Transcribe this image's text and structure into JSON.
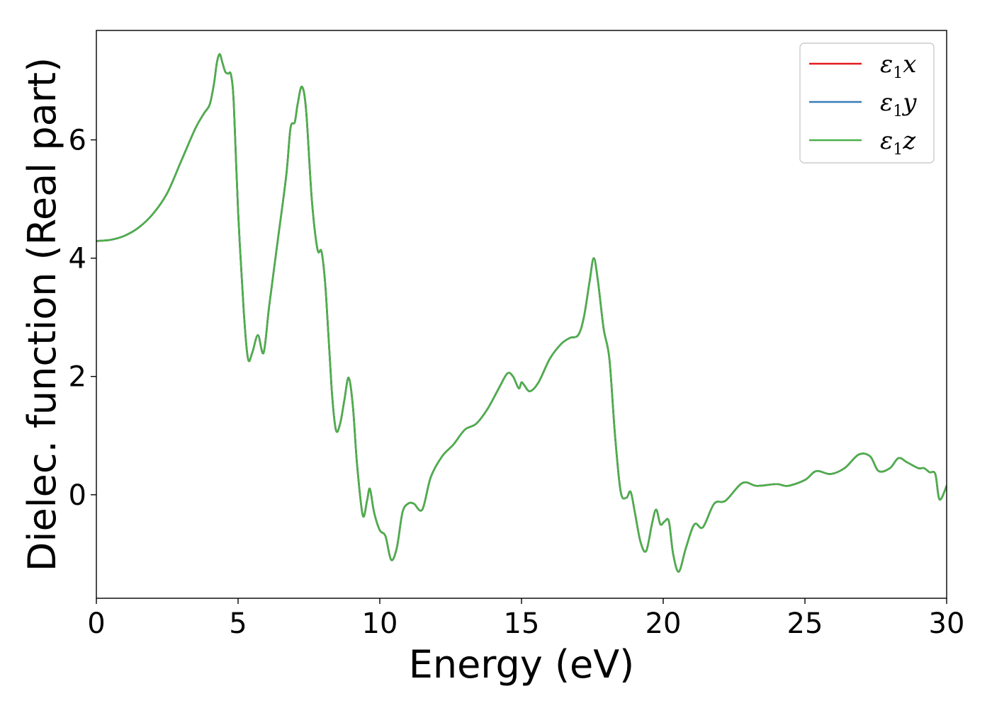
{
  "chart_data": {
    "type": "line",
    "xlabel": "Energy (eV)",
    "ylabel": "Dielec. function (Real part)",
    "xlim": [
      0,
      30
    ],
    "ylim": [
      -1.75,
      7.85
    ],
    "xticks": [
      0,
      5,
      10,
      15,
      20,
      25,
      30
    ],
    "yticks": [
      0,
      2,
      4,
      6
    ],
    "grid": false,
    "legend_position": "top-right",
    "legend": [
      {
        "base": "ε",
        "sub": "1",
        "var": "x",
        "color": "#e41a1c"
      },
      {
        "base": "ε",
        "sub": "1",
        "var": "y",
        "color": "#377eb8"
      },
      {
        "base": "ε",
        "sub": "1",
        "var": "z",
        "color": "#4daf4a"
      }
    ],
    "x": [
      0,
      0.5,
      1.0,
      1.5,
      2.0,
      2.5,
      3.0,
      3.5,
      3.8,
      4.0,
      4.15,
      4.25,
      4.35,
      4.45,
      4.55,
      4.65,
      4.75,
      4.85,
      5.0,
      5.2,
      5.35,
      5.5,
      5.7,
      5.9,
      6.1,
      6.4,
      6.7,
      6.85,
      7.0,
      7.1,
      7.25,
      7.4,
      7.6,
      7.8,
      7.95,
      8.1,
      8.3,
      8.45,
      8.6,
      8.75,
      8.9,
      9.05,
      9.2,
      9.4,
      9.55,
      9.65,
      9.8,
      10.0,
      10.2,
      10.4,
      10.6,
      10.8,
      11.0,
      11.2,
      11.5,
      11.8,
      12.2,
      12.6,
      13.0,
      13.4,
      13.8,
      14.2,
      14.5,
      14.7,
      14.9,
      15.0,
      15.1,
      15.3,
      15.6,
      16.0,
      16.4,
      16.7,
      17.0,
      17.2,
      17.4,
      17.55,
      17.7,
      17.9,
      18.1,
      18.3,
      18.5,
      18.7,
      18.85,
      19.0,
      19.2,
      19.4,
      19.6,
      19.75,
      19.9,
      20.05,
      20.2,
      20.35,
      20.55,
      20.8,
      21.1,
      21.4,
      21.8,
      22.2,
      22.8,
      23.3,
      24.0,
      24.4,
      25.0,
      25.4,
      25.9,
      26.4,
      26.9,
      27.3,
      27.6,
      28.0,
      28.3,
      28.6,
      29.0,
      29.2,
      29.4,
      29.6,
      29.75,
      30.0
    ],
    "series": [
      {
        "values": [
          4.29,
          4.31,
          4.38,
          4.52,
          4.75,
          5.1,
          5.65,
          6.2,
          6.45,
          6.6,
          6.95,
          7.3,
          7.45,
          7.3,
          7.15,
          7.12,
          7.1,
          6.6,
          4.8,
          3.1,
          2.3,
          2.4,
          2.7,
          2.4,
          3.2,
          4.3,
          5.4,
          6.2,
          6.3,
          6.6,
          6.9,
          6.5,
          5.0,
          4.15,
          4.1,
          3.4,
          1.8,
          1.1,
          1.2,
          1.6,
          1.98,
          1.5,
          0.5,
          -0.35,
          -0.1,
          0.1,
          -0.3,
          -0.6,
          -0.7,
          -1.1,
          -0.9,
          -0.3,
          -0.15,
          -0.15,
          -0.25,
          0.3,
          0.65,
          0.85,
          1.1,
          1.2,
          1.45,
          1.8,
          2.05,
          2.0,
          1.8,
          1.9,
          1.85,
          1.75,
          1.9,
          2.3,
          2.55,
          2.65,
          2.7,
          3.0,
          3.6,
          4.0,
          3.6,
          2.8,
          2.3,
          1.0,
          0.05,
          -0.05,
          0.05,
          -0.3,
          -0.8,
          -0.95,
          -0.5,
          -0.25,
          -0.5,
          -0.45,
          -0.45,
          -1.0,
          -1.3,
          -0.9,
          -0.5,
          -0.55,
          -0.15,
          -0.1,
          0.2,
          0.15,
          0.18,
          0.15,
          0.25,
          0.4,
          0.35,
          0.45,
          0.68,
          0.65,
          0.4,
          0.45,
          0.62,
          0.55,
          0.45,
          0.45,
          0.38,
          0.35,
          -0.08,
          0.15
        ]
      },
      {
        "values": [
          4.29,
          4.31,
          4.38,
          4.52,
          4.75,
          5.1,
          5.65,
          6.2,
          6.45,
          6.6,
          6.95,
          7.3,
          7.45,
          7.3,
          7.15,
          7.12,
          7.1,
          6.6,
          4.8,
          3.1,
          2.3,
          2.4,
          2.7,
          2.4,
          3.2,
          4.3,
          5.4,
          6.2,
          6.3,
          6.6,
          6.9,
          6.5,
          5.0,
          4.15,
          4.1,
          3.4,
          1.8,
          1.1,
          1.2,
          1.6,
          1.98,
          1.5,
          0.5,
          -0.35,
          -0.1,
          0.1,
          -0.3,
          -0.6,
          -0.7,
          -1.1,
          -0.9,
          -0.3,
          -0.15,
          -0.15,
          -0.25,
          0.3,
          0.65,
          0.85,
          1.1,
          1.2,
          1.45,
          1.8,
          2.05,
          2.0,
          1.8,
          1.9,
          1.85,
          1.75,
          1.9,
          2.3,
          2.55,
          2.65,
          2.7,
          3.0,
          3.6,
          4.0,
          3.6,
          2.8,
          2.3,
          1.0,
          0.05,
          -0.05,
          0.05,
          -0.3,
          -0.8,
          -0.95,
          -0.5,
          -0.25,
          -0.5,
          -0.45,
          -0.45,
          -1.0,
          -1.3,
          -0.9,
          -0.5,
          -0.55,
          -0.15,
          -0.1,
          0.2,
          0.15,
          0.18,
          0.15,
          0.25,
          0.4,
          0.35,
          0.45,
          0.68,
          0.65,
          0.4,
          0.45,
          0.62,
          0.55,
          0.45,
          0.45,
          0.38,
          0.35,
          -0.08,
          0.15
        ]
      },
      {
        "values": [
          4.29,
          4.31,
          4.38,
          4.52,
          4.75,
          5.1,
          5.65,
          6.2,
          6.45,
          6.6,
          6.95,
          7.3,
          7.45,
          7.3,
          7.15,
          7.12,
          7.1,
          6.6,
          4.8,
          3.1,
          2.3,
          2.4,
          2.7,
          2.4,
          3.2,
          4.3,
          5.4,
          6.2,
          6.3,
          6.6,
          6.9,
          6.5,
          5.0,
          4.15,
          4.1,
          3.4,
          1.8,
          1.1,
          1.2,
          1.6,
          1.98,
          1.5,
          0.5,
          -0.35,
          -0.1,
          0.1,
          -0.3,
          -0.6,
          -0.7,
          -1.1,
          -0.9,
          -0.3,
          -0.15,
          -0.15,
          -0.25,
          0.3,
          0.65,
          0.85,
          1.1,
          1.2,
          1.45,
          1.8,
          2.05,
          2.0,
          1.8,
          1.9,
          1.85,
          1.75,
          1.9,
          2.3,
          2.55,
          2.65,
          2.7,
          3.0,
          3.6,
          4.0,
          3.6,
          2.8,
          2.3,
          1.0,
          0.05,
          -0.05,
          0.05,
          -0.3,
          -0.8,
          -0.95,
          -0.5,
          -0.25,
          -0.5,
          -0.45,
          -0.45,
          -1.0,
          -1.3,
          -0.9,
          -0.5,
          -0.55,
          -0.15,
          -0.1,
          0.2,
          0.15,
          0.18,
          0.15,
          0.25,
          0.4,
          0.35,
          0.45,
          0.68,
          0.65,
          0.4,
          0.45,
          0.62,
          0.55,
          0.45,
          0.45,
          0.38,
          0.35,
          -0.08,
          0.15
        ]
      }
    ]
  }
}
